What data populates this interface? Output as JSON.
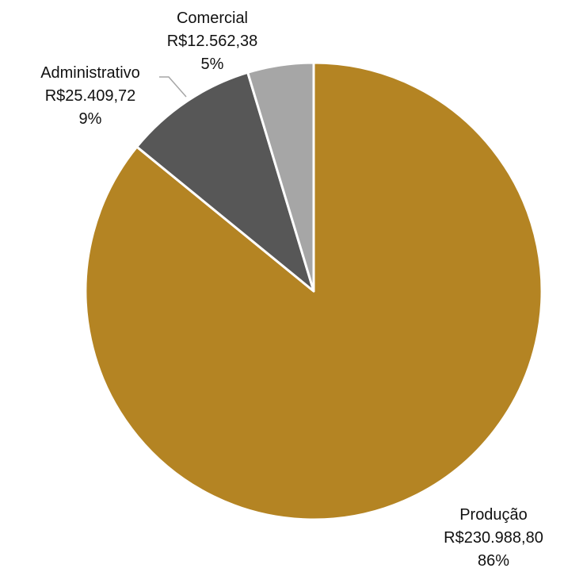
{
  "chart_data": {
    "type": "pie",
    "start_angle_deg": 0,
    "direction": "clockwise",
    "slices": [
      {
        "label": "Produção",
        "value_text": "R$230.988,80",
        "value": 230988.8,
        "percent_text": "86%",
        "color": "#B48423"
      },
      {
        "label": "Administrativo",
        "value_text": "R$25.409,72",
        "value": 25409.72,
        "percent_text": "9%",
        "color": "#575757"
      },
      {
        "label": "Comercial",
        "value_text": "R$12.562,38",
        "value": 12562.38,
        "percent_text": "5%",
        "color": "#A6A6A6"
      }
    ],
    "slice_border_color": "#ffffff",
    "leader_line_color": "#A6A6A6"
  }
}
